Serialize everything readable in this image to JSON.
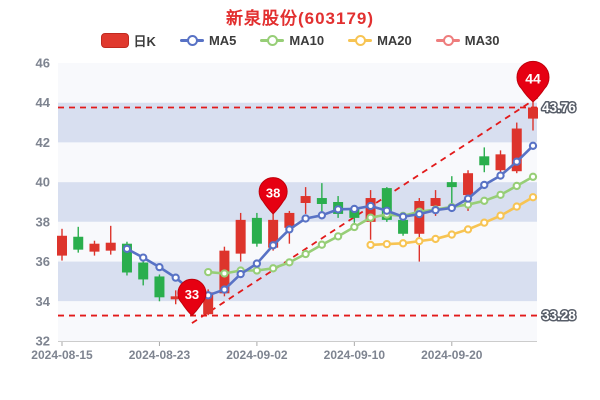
{
  "title": {
    "text": "新泉股份(603179)",
    "color": "#e23030"
  },
  "legend": {
    "items": [
      {
        "label": "日K",
        "type": "candle",
        "color": "#e0392e",
        "border": "#c02a20"
      },
      {
        "label": "MA5",
        "type": "line",
        "color": "#5872c5"
      },
      {
        "label": "MA10",
        "type": "line",
        "color": "#97ce77"
      },
      {
        "label": "MA20",
        "type": "line",
        "color": "#f7c453"
      },
      {
        "label": "MA30",
        "type": "line",
        "color": "#ee7d7d"
      }
    ]
  },
  "chart_data": {
    "type": "candlestick",
    "title": "新泉股份(603179)",
    "ylim": [
      32,
      46
    ],
    "y_ticks": [
      32,
      34,
      36,
      38,
      40,
      42,
      44,
      46
    ],
    "x_tick_labels": [
      "2024-08-15",
      "2024-08-23",
      "2024-09-02",
      "2024-09-10",
      "2024-09-20"
    ],
    "x_tick_indices": [
      0,
      6,
      12,
      18,
      24
    ],
    "grid": "horizontal-bands",
    "legend_position": "top",
    "categories": [
      "2024-08-15",
      "2024-08-16",
      "2024-08-19",
      "2024-08-20",
      "2024-08-21",
      "2024-08-22",
      "2024-08-23",
      "2024-08-26",
      "2024-08-27",
      "2024-08-28",
      "2024-08-29",
      "2024-08-30",
      "2024-09-02",
      "2024-09-03",
      "2024-09-04",
      "2024-09-05",
      "2024-09-06",
      "2024-09-09",
      "2024-09-10",
      "2024-09-11",
      "2024-09-12",
      "2024-09-13",
      "2024-09-18",
      "2024-09-19",
      "2024-09-20",
      "2024-09-23",
      "2024-09-24",
      "2024-09-25",
      "2024-09-26",
      "2024-09-27"
    ],
    "candle_format": [
      "open",
      "close",
      "high",
      "low"
    ],
    "candles": [
      [
        36.3,
        37.3,
        37.65,
        36.05
      ],
      [
        37.25,
        36.6,
        37.75,
        36.45
      ],
      [
        36.5,
        36.9,
        37.05,
        36.3
      ],
      [
        36.55,
        36.95,
        37.8,
        36.35
      ],
      [
        36.9,
        35.45,
        37.0,
        35.3
      ],
      [
        35.95,
        35.1,
        36.1,
        34.8
      ],
      [
        35.25,
        34.2,
        35.35,
        34.0
      ],
      [
        34.1,
        34.25,
        34.55,
        33.85
      ],
      [
        34.45,
        33.5,
        34.55,
        33.28
      ],
      [
        33.35,
        34.45,
        34.6,
        33.3
      ],
      [
        34.4,
        36.55,
        36.75,
        34.25
      ],
      [
        36.4,
        38.1,
        38.45,
        36.0
      ],
      [
        38.2,
        36.9,
        38.45,
        36.75
      ],
      [
        36.7,
        38.1,
        38.4,
        36.55
      ],
      [
        37.7,
        38.45,
        38.55,
        36.9
      ],
      [
        38.95,
        39.3,
        39.75,
        38.4
      ],
      [
        39.2,
        38.9,
        39.95,
        38.5
      ],
      [
        39.0,
        38.4,
        39.3,
        38.2
      ],
      [
        38.7,
        38.2,
        38.85,
        37.95
      ],
      [
        38.0,
        39.2,
        39.6,
        37.1
      ],
      [
        39.7,
        38.1,
        39.75,
        38.0
      ],
      [
        38.1,
        37.4,
        38.3,
        37.3
      ],
      [
        37.4,
        39.05,
        39.2,
        36.0
      ],
      [
        38.8,
        39.2,
        39.6,
        38.3
      ],
      [
        40.0,
        39.75,
        40.3,
        38.5
      ],
      [
        39.35,
        40.45,
        40.6,
        38.55
      ],
      [
        41.3,
        40.85,
        41.75,
        40.5
      ],
      [
        40.6,
        41.4,
        41.6,
        40.3
      ],
      [
        40.55,
        42.7,
        43.0,
        40.45
      ],
      [
        43.2,
        43.76,
        44.04,
        42.6
      ]
    ],
    "series": [
      {
        "name": "MA5",
        "color": "#5872c5",
        "start": 4,
        "values": [
          36.64,
          36.2,
          35.72,
          35.19,
          34.5,
          34.3,
          34.59,
          35.37,
          35.9,
          36.82,
          37.62,
          38.17,
          38.33,
          38.63,
          38.65,
          38.8,
          38.56,
          38.26,
          38.39,
          38.59,
          38.7,
          39.17,
          39.86,
          40.33,
          41.03,
          41.83
        ]
      },
      {
        "name": "MA10",
        "color": "#97ce77",
        "start": 9,
        "values": [
          35.47,
          35.4,
          35.55,
          35.55,
          35.66,
          35.96,
          36.38,
          36.85,
          37.27,
          37.74,
          38.21,
          38.37,
          38.3,
          38.51,
          38.62,
          38.75,
          38.87,
          39.06,
          39.36,
          39.81,
          40.27
        ]
      },
      {
        "name": "MA20",
        "color": "#f7c453",
        "start": 19,
        "values": [
          36.84,
          36.88,
          36.92,
          37.03,
          37.14,
          37.36,
          37.62,
          37.96,
          38.31,
          38.77,
          39.24
        ]
      },
      {
        "name": "MA30",
        "color": "#ee7d7d",
        "start": 29,
        "values": []
      }
    ],
    "markers": [
      {
        "label": "33",
        "index": 8,
        "value": 33.28,
        "size": "normal"
      },
      {
        "label": "38",
        "index": 13,
        "value": 38.4,
        "size": "normal"
      },
      {
        "label": "44",
        "index": 29,
        "value": 44.04,
        "size": "large"
      }
    ],
    "ref_lines": [
      {
        "type": "h",
        "value": 43.76,
        "label": "43.76"
      },
      {
        "type": "h",
        "value": 33.28,
        "label": "33.28"
      },
      {
        "type": "segment",
        "from": {
          "index": 8,
          "value": 32.9
        },
        "to": {
          "index": 29.35,
          "value": 44.3
        }
      }
    ],
    "last_price_label": "43.76",
    "colors": {
      "up": "#dd342c",
      "down": "#2aae4d",
      "pin": "#e60012",
      "pin_border": "#c0000a",
      "band_blue": "#d8dff0",
      "band_light": "#f8f9fc",
      "ref_line": "#e21a1a",
      "axis_text": "#7e8490",
      "axis_line": "#cccccc",
      "marker_label_fill": "#ffffff",
      "ref_label_outline": "#575d68"
    }
  }
}
